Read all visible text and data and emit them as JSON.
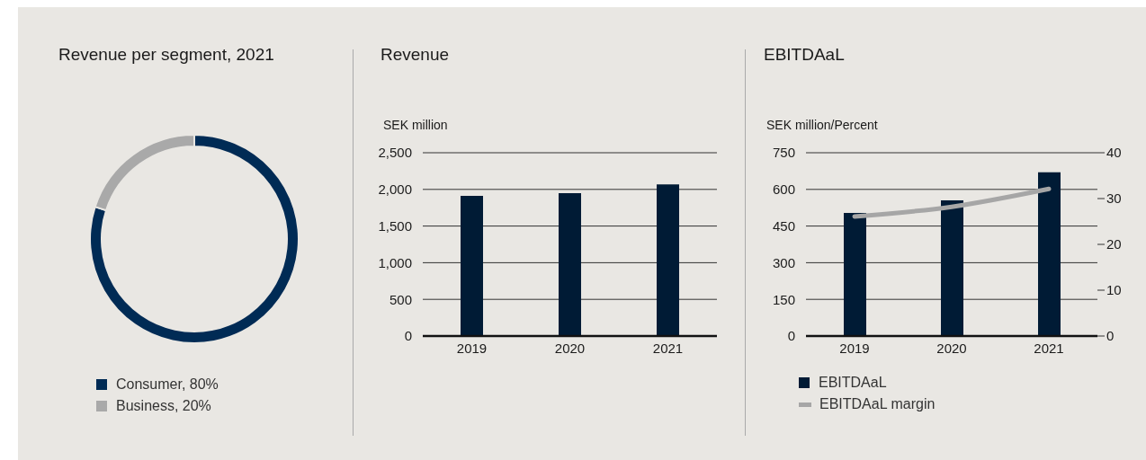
{
  "chart_data": [
    {
      "type": "donut",
      "title": "Revenue per segment, 2021",
      "categories": [
        "Consumer",
        "Business"
      ],
      "values": [
        80,
        20
      ],
      "value_labels": [
        "80%",
        "20%"
      ],
      "colors": [
        "#002b55",
        "#a9a9a9"
      ],
      "legend": "bottom left"
    },
    {
      "type": "bar",
      "title": "Revenue",
      "ylabel": "SEK million",
      "categories": [
        "2019",
        "2020",
        "2021"
      ],
      "values": [
        1911,
        1947,
        2069
      ],
      "color": "#001b35",
      "ylim": [
        0,
        2500
      ],
      "yticks": [
        0,
        500,
        {
          "value": 1000,
          "label": "1,000"
        },
        {
          "value": 1500,
          "label": "1,500"
        },
        {
          "value": 2000,
          "label": "2,000"
        },
        {
          "value": 2500,
          "label": "2,500"
        }
      ],
      "grid": "y"
    },
    {
      "type": "bar",
      "title": "EBITDAaL",
      "ylabel": "SEK million/Percent",
      "categories": [
        "2019",
        "2020",
        "2021"
      ],
      "series": [
        {
          "name": "EBITDAaL",
          "color": "#001b35",
          "values": [
            504,
            555,
            670
          ]
        },
        {
          "name": "EBITDAaL margin",
          "type": "line",
          "axis": "y2",
          "color": "#a6a6a6",
          "values": [
            26.1,
            28.2,
            32.1
          ]
        }
      ],
      "ylim": [
        0,
        750
      ],
      "yticks": [
        0,
        150,
        300,
        450,
        600,
        750
      ],
      "y2lim": [
        0,
        40
      ],
      "y2ticks": [
        0,
        10,
        20,
        30,
        40
      ],
      "grid": "y",
      "legend": "bottom left"
    }
  ]
}
